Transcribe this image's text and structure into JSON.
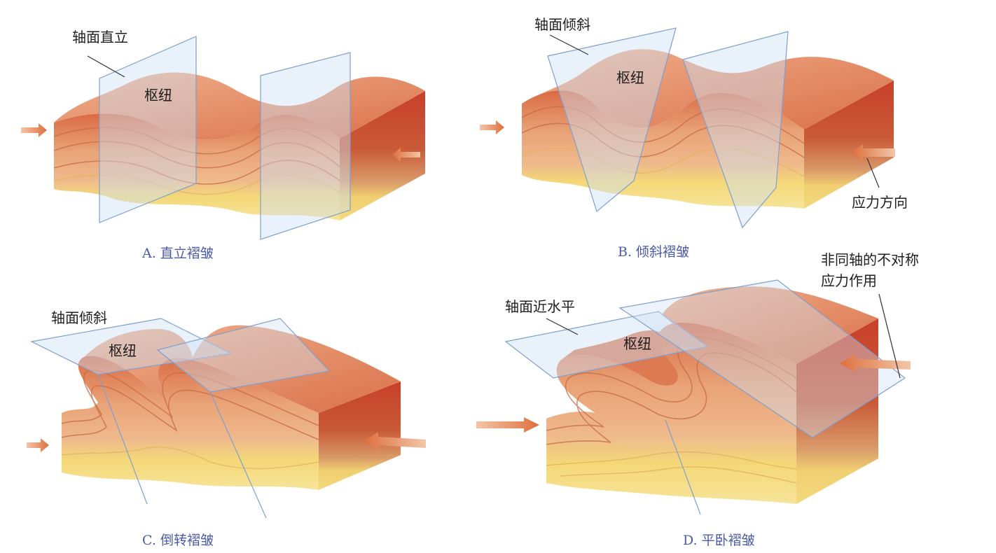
{
  "panels": [
    {
      "id": "A",
      "caption": "A.  直立褶皱",
      "axial_label": "轴面直立",
      "hinge_label": "枢纽"
    },
    {
      "id": "B",
      "caption": "B.  倾斜褶皱",
      "axial_label": "轴面倾斜",
      "hinge_label": "枢纽",
      "stress_label": "应力方向"
    },
    {
      "id": "C",
      "caption": "C.  倒转褶皱",
      "axial_label": "轴面倾斜",
      "hinge_label": "枢纽"
    },
    {
      "id": "D",
      "caption": "D.  平卧褶皱",
      "axial_label": "轴面近水平",
      "hinge_label": "枢纽",
      "stress_label_line1": "非同轴的不对称",
      "stress_label_line2": "应力作用"
    }
  ],
  "colors": {
    "top_layer": "#e8946a",
    "red_layer": "#cf4a2e",
    "mid_layer": "#e9a277",
    "yellow_layer": "#f4d878",
    "plane": "#cfe0f4",
    "plane_edge": "#7f9fce",
    "arrow": "#e07b4a"
  }
}
